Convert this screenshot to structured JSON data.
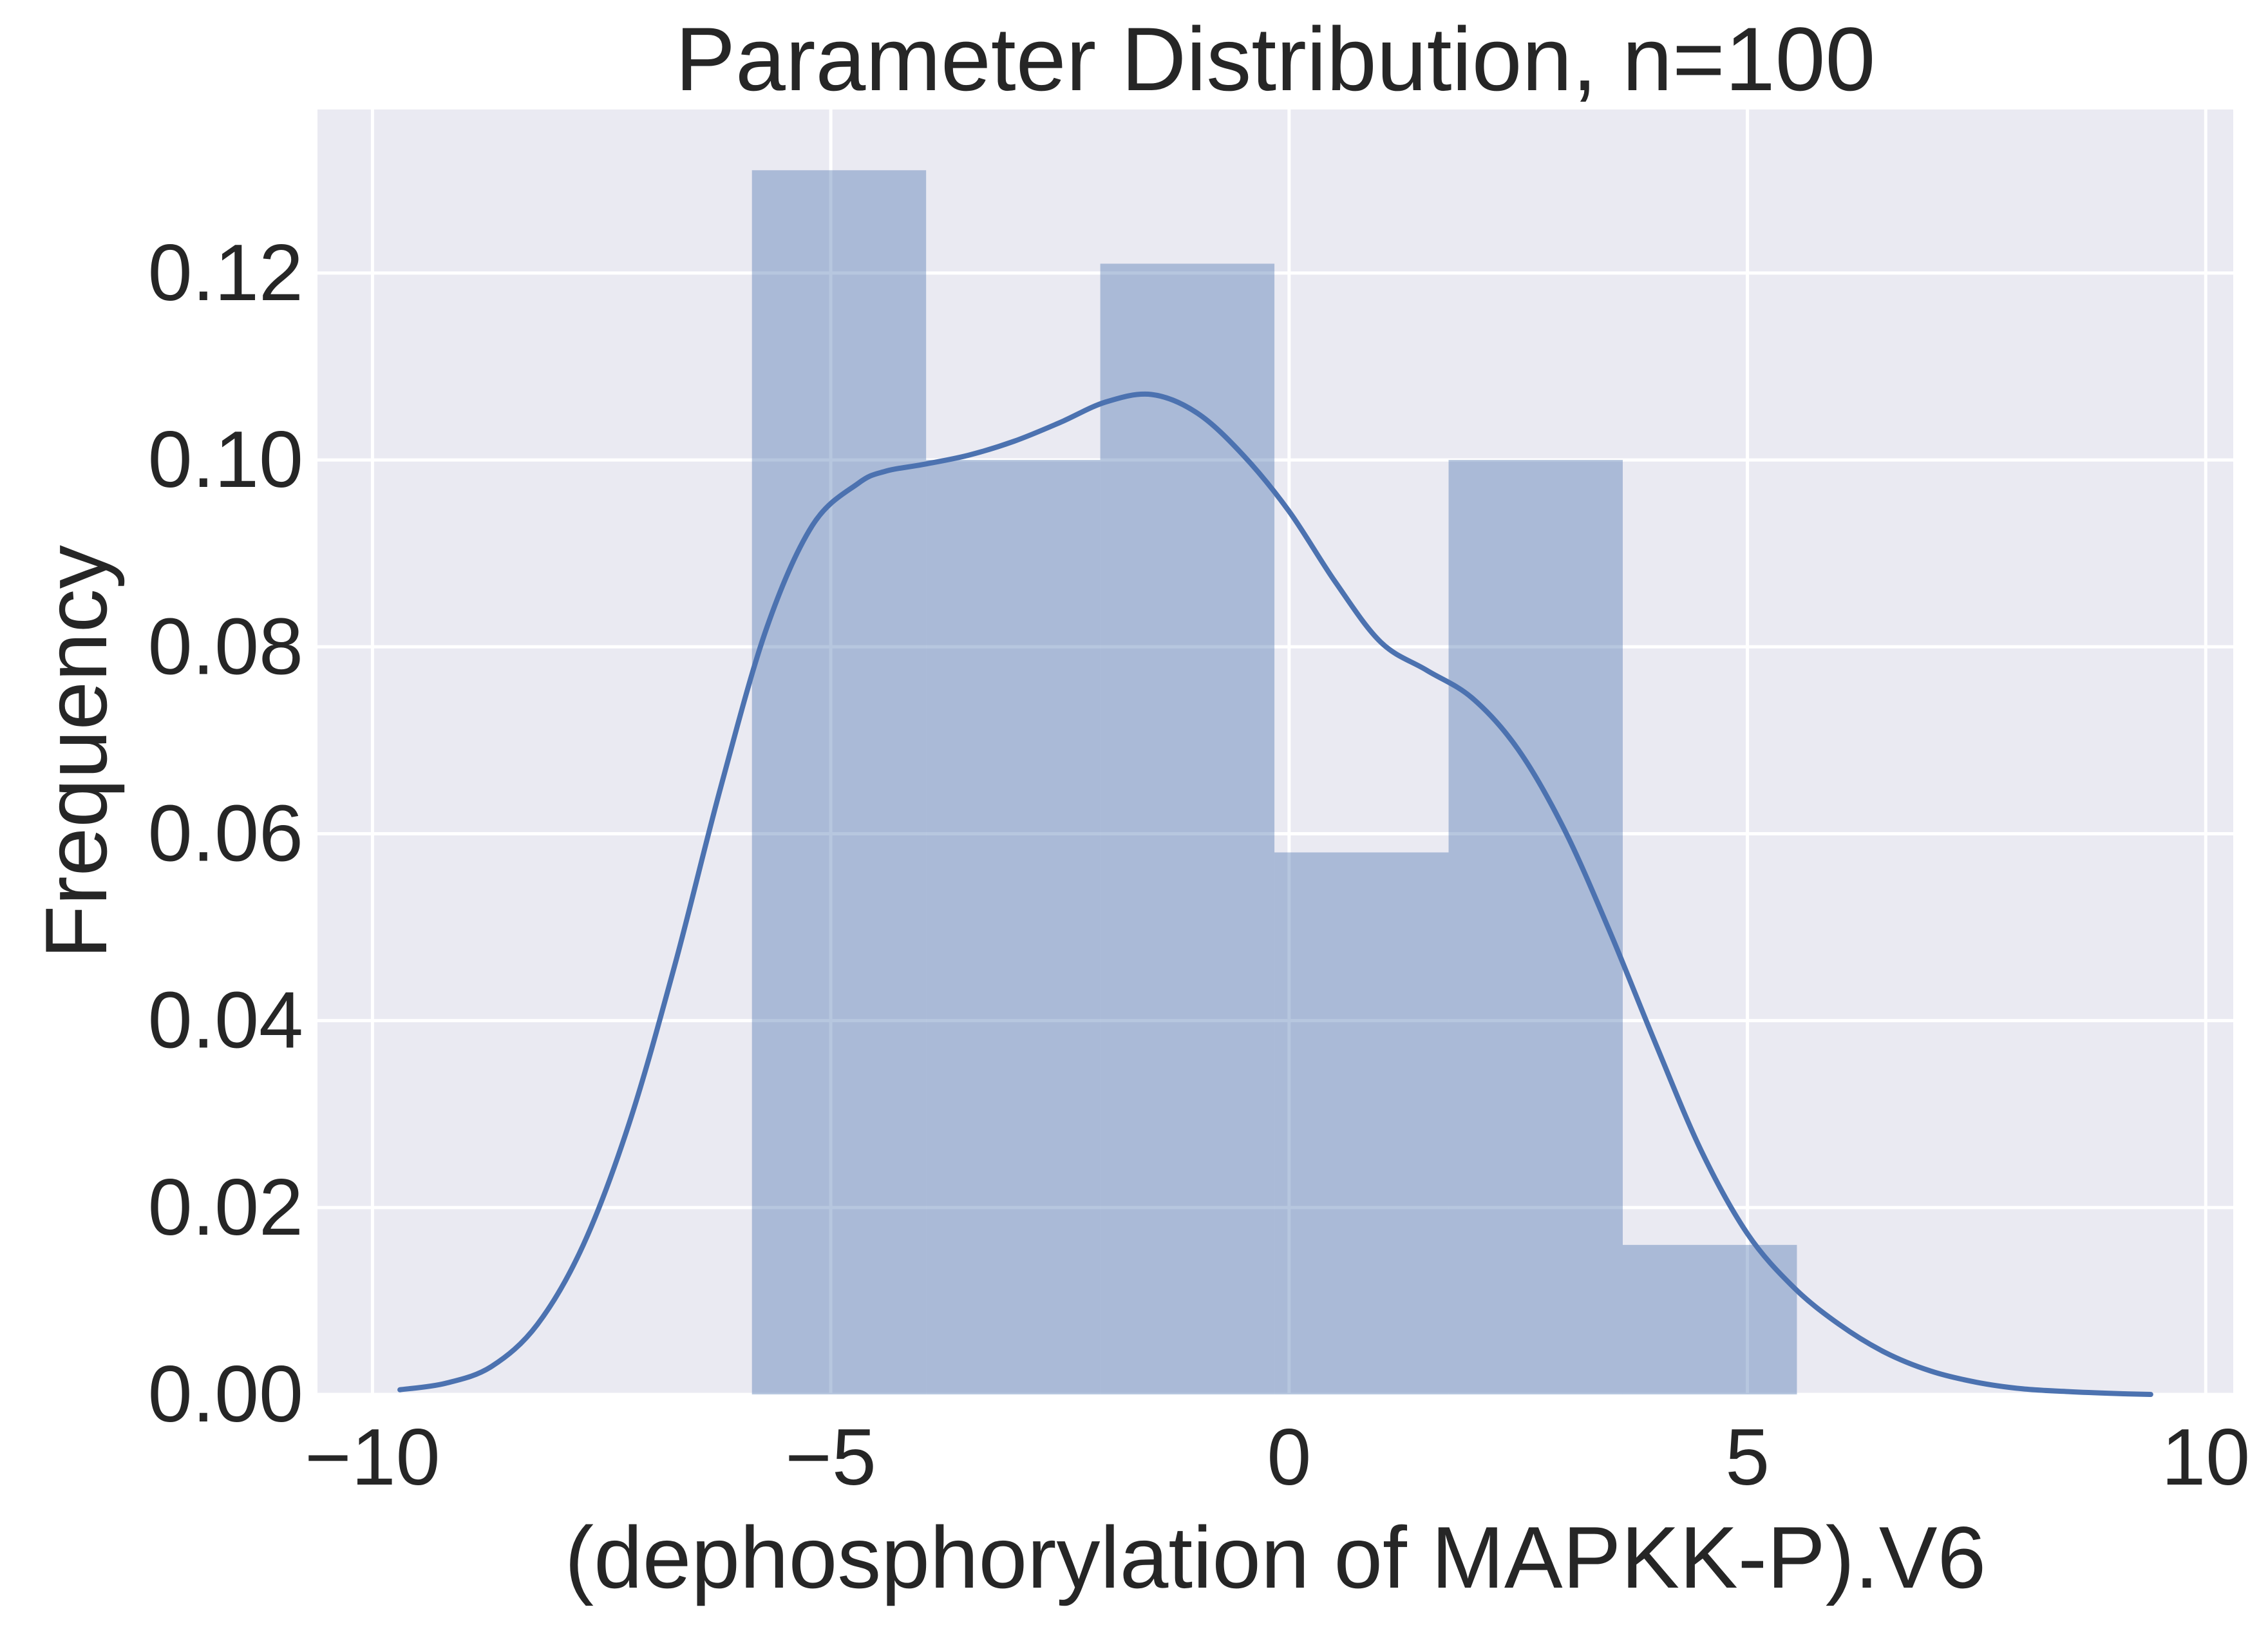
{
  "chart_data": {
    "type": "bar",
    "title": "Parameter Distribution, n=100",
    "xlabel": "(dephosphorylation of MAPKK-P).V6",
    "ylabel": "Frequency",
    "xlim": [
      -10.6,
      10.3
    ],
    "ylim": [
      0,
      0.1375
    ],
    "grid": true,
    "legend": "none",
    "colors": {
      "plot_background": "#EAEAF2",
      "grid": "#FFFFFF",
      "bar_fill": "#4C72B0",
      "bar_opacity": 0.4,
      "kde_line": "#4C72B0",
      "text": "#262626"
    },
    "x_ticks": [
      {
        "value": -10,
        "label": "−10"
      },
      {
        "value": -5,
        "label": "−5"
      },
      {
        "value": 0,
        "label": "0"
      },
      {
        "value": 5,
        "label": "5"
      },
      {
        "value": 10,
        "label": "10"
      }
    ],
    "y_ticks": [
      {
        "value": 0.0,
        "label": "0.00"
      },
      {
        "value": 0.02,
        "label": "0.02"
      },
      {
        "value": 0.04,
        "label": "0.04"
      },
      {
        "value": 0.06,
        "label": "0.06"
      },
      {
        "value": 0.08,
        "label": "0.08"
      },
      {
        "value": 0.1,
        "label": "0.10"
      },
      {
        "value": 0.12,
        "label": "0.12"
      }
    ],
    "histogram": {
      "bin_edges": [
        -5.86,
        -3.96,
        -2.06,
        -0.16,
        1.74,
        3.64,
        5.54
      ],
      "values": [
        0.131,
        0.1,
        0.121,
        0.058,
        0.1,
        0.016
      ]
    },
    "kde": {
      "x": [
        -9.7,
        -9.2,
        -8.7,
        -8.2,
        -7.7,
        -7.2,
        -6.7,
        -6.2,
        -5.7,
        -5.2,
        -4.7,
        -4.4,
        -4.0,
        -3.5,
        -3.0,
        -2.5,
        -2.0,
        -1.5,
        -1.0,
        -0.5,
        0.0,
        0.5,
        1.0,
        1.5,
        2.0,
        2.5,
        3.0,
        3.5,
        4.0,
        4.5,
        5.0,
        5.5,
        6.0,
        6.5,
        7.0,
        7.5,
        8.0,
        8.5,
        9.0,
        9.4
      ],
      "y": [
        0.0005,
        0.0012,
        0.003,
        0.0075,
        0.016,
        0.029,
        0.046,
        0.065,
        0.082,
        0.093,
        0.0975,
        0.0988,
        0.0995,
        0.1005,
        0.102,
        0.104,
        0.1062,
        0.107,
        0.105,
        0.1005,
        0.0945,
        0.087,
        0.0805,
        0.0775,
        0.0745,
        0.069,
        0.0605,
        0.0495,
        0.0375,
        0.026,
        0.0172,
        0.0115,
        0.0075,
        0.0045,
        0.0025,
        0.0013,
        0.0006,
        0.0003,
        0.0001,
        0.0
      ]
    }
  }
}
